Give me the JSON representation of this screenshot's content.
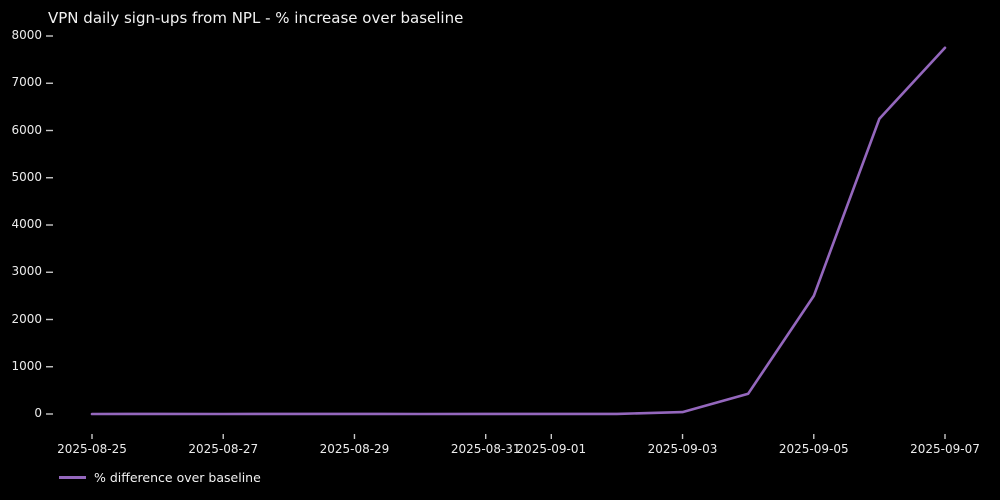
{
  "chart": {
    "title": "VPN daily sign-ups from NPL - % increase over baseline",
    "colors": {
      "background": "#000000",
      "text": "#f2f2f2",
      "tick": "#c9c9c9",
      "line": "#9467bd"
    },
    "legend": {
      "label": "% difference over baseline",
      "swatch_color": "#9467bd",
      "position": "lower-left-outside"
    }
  },
  "chart_data": {
    "type": "line",
    "title": "VPN daily sign-ups from NPL - % increase over baseline",
    "xlabel": "",
    "ylabel": "",
    "x": [
      "2025-08-25",
      "2025-08-26",
      "2025-08-27",
      "2025-08-28",
      "2025-08-29",
      "2025-08-30",
      "2025-08-31",
      "2025-09-01",
      "2025-09-02",
      "2025-09-03",
      "2025-09-04",
      "2025-09-05",
      "2025-09-06",
      "2025-09-07"
    ],
    "series": [
      {
        "name": "% difference over baseline",
        "color": "#9467bd",
        "values": [
          0,
          2,
          1,
          3,
          2,
          1,
          2,
          3,
          2,
          40,
          430,
          2500,
          6250,
          7750
        ]
      }
    ],
    "ylim": [
      0,
      8000
    ],
    "yticks": [
      0,
      1000,
      2000,
      3000,
      4000,
      5000,
      6000,
      7000,
      8000
    ],
    "xtick_labels": [
      "2025-08-25",
      "2025-08-27",
      "2025-08-29",
      "2025-08-31",
      "2025-09-01",
      "2025-09-03",
      "2025-09-05",
      "2025-09-07"
    ],
    "grid": false,
    "legend_position": "lower-left-outside"
  }
}
